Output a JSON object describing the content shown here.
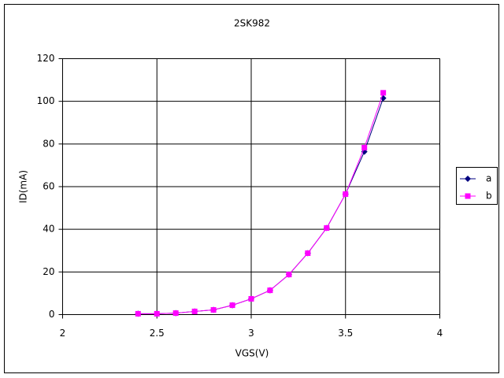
{
  "chart_data": {
    "type": "line",
    "title": "2SK982",
    "x_label": "VGS(V)",
    "y_label": "ID(mA)",
    "x": [
      2.4,
      2.5,
      2.6,
      2.7,
      2.8,
      2.9,
      3.0,
      3.1,
      3.2,
      3.3,
      3.4,
      3.5,
      3.6,
      3.7
    ],
    "series": [
      {
        "name": "a",
        "color": "#000080",
        "marker": "diamond",
        "values": [
          0.4,
          0.4,
          0.7,
          1.5,
          2.2,
          4.4,
          7.4,
          11.4,
          18.8,
          28.8,
          40.6,
          56.5,
          76.4,
          101.5
        ]
      },
      {
        "name": "b",
        "color": "#ff00ff",
        "marker": "square",
        "values": [
          0.4,
          0.4,
          0.7,
          1.5,
          2.2,
          4.4,
          7.4,
          11.4,
          18.8,
          28.8,
          40.6,
          56.5,
          78.3,
          104
        ]
      }
    ],
    "xlim": [
      2,
      4
    ],
    "xticks": [
      2,
      2.5,
      3,
      3.5,
      4
    ],
    "ylim": [
      0,
      120
    ],
    "yticks": [
      0,
      20,
      40,
      60,
      80,
      100,
      120
    ],
    "grid": true,
    "legend": "right"
  }
}
